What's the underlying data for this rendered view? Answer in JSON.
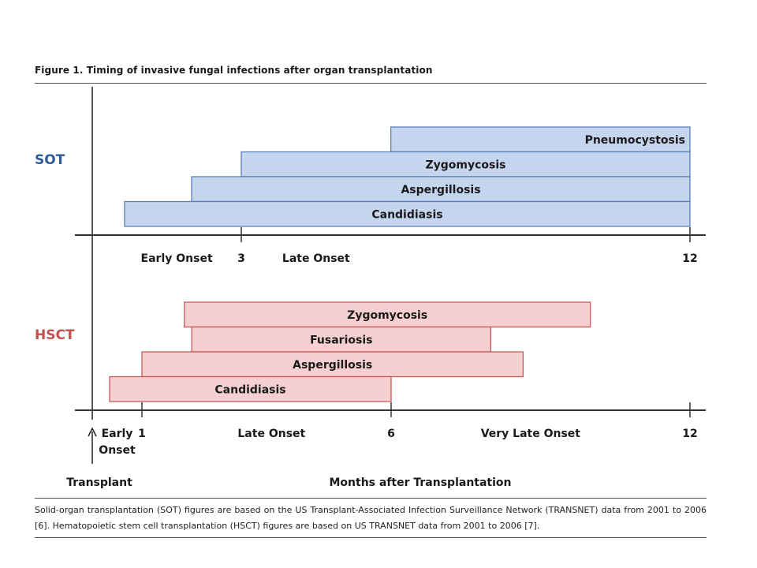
{
  "figure_title": "Figure 1.  Timing of invasive fungal infections after organ transplantation",
  "caption": "Solid-organ transplantation (SOT) figures are based on the US Transplant-Associated Infection Surveillance Network (TRANSNET) data from 2001 to 2006 [6]. Hematopoietic stem cell transplantation (HSCT) figures are based on US TRANSNET data from 2001 to 2006 [7].",
  "colors": {
    "sot_fill": "#c5d5ee",
    "sot_stroke": "#5a7fb8",
    "sot_label": "#2e5a9a",
    "hsct_fill": "#f6d0d0",
    "hsct_stroke": "#c85a5a",
    "hsct_label": "#c0504d"
  },
  "chart_data": [
    {
      "type": "bar",
      "orientation": "horizontal-range",
      "panel_label": "SOT",
      "x_unit": "months",
      "xlim": [
        0,
        12
      ],
      "series": [
        {
          "name": "Pneumocystosis",
          "start": 6,
          "end": 12
        },
        {
          "name": "Zygomycosis",
          "start": 3,
          "end": 12
        },
        {
          "name": "Aspergillosis",
          "start": 2,
          "end": 12
        },
        {
          "name": "Candidiasis",
          "start": 0.65,
          "end": 12
        }
      ],
      "ticks": [
        {
          "value": 3,
          "label": "3"
        },
        {
          "value": 12,
          "label": "12"
        }
      ],
      "period_labels": [
        {
          "value": 1.7,
          "text": "Early Onset"
        },
        {
          "value": 4.5,
          "text": "Late Onset"
        }
      ]
    },
    {
      "type": "bar",
      "orientation": "horizontal-range",
      "panel_label": "HSCT",
      "x_unit": "months",
      "xlim": [
        0,
        12
      ],
      "series": [
        {
          "name": "Zygomycosis",
          "start": 1.85,
          "end": 10
        },
        {
          "name": "Fusariosis",
          "start": 2,
          "end": 8
        },
        {
          "name": "Aspergillosis",
          "start": 1,
          "end": 8.65
        },
        {
          "name": "Candidiasis",
          "start": 0.35,
          "end": 6
        }
      ],
      "ticks": [
        {
          "value": 1,
          "label": "1"
        },
        {
          "value": 6,
          "label": "6"
        },
        {
          "value": 12,
          "label": "12"
        }
      ],
      "period_labels": [
        {
          "value": 0.5,
          "text": "Early",
          "text2": "Onset"
        },
        {
          "value": 3.6,
          "text": "Late Onset"
        },
        {
          "value": 8.8,
          "text": "Very Late Onset"
        }
      ],
      "transplant_label": "Transplant",
      "xlabel": "Months after Transplantation"
    }
  ]
}
